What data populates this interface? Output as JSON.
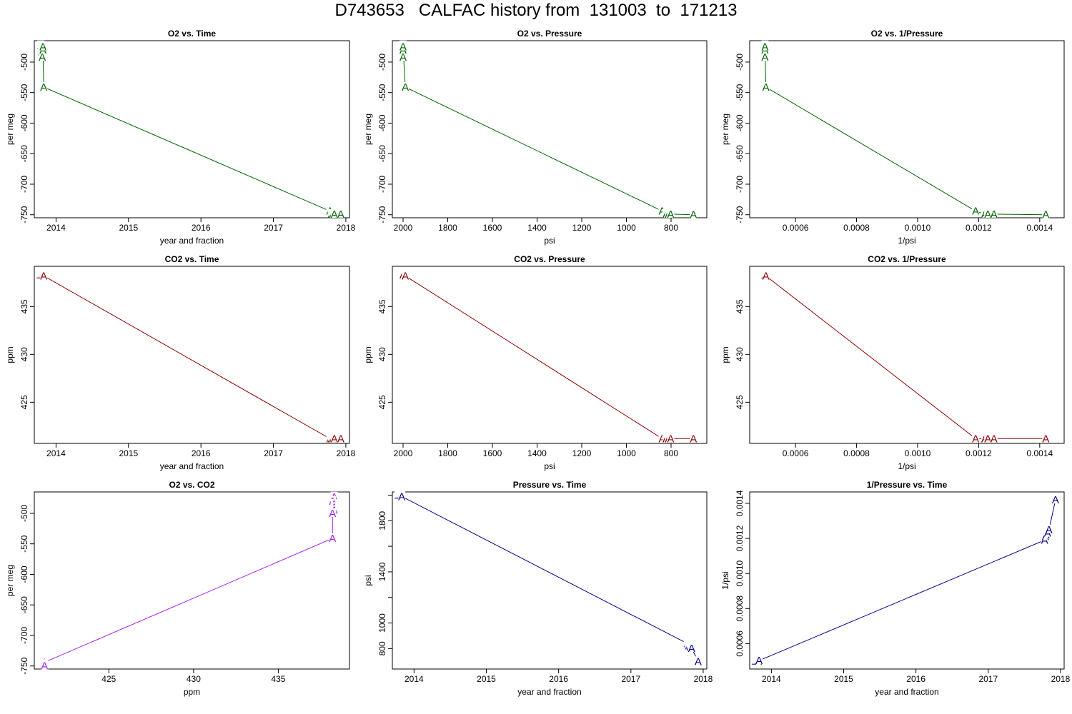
{
  "title": "D743653   CALFAC history from  131003  to  171213",
  "colors": {
    "o2": "#006400",
    "co2": "#8b0000",
    "o2_co2": "#a020f0",
    "pressure": "#00008b"
  },
  "chart_data": [
    {
      "type": "line",
      "title": "O2 vs. Time",
      "xlabel": "year and fraction",
      "ylabel": "per meg",
      "color_key": "o2",
      "marker": "A",
      "xlim": [
        2013.7,
        2018.05
      ],
      "ylim": [
        -755,
        -465
      ],
      "xticks": [
        2014,
        2015,
        2016,
        2017,
        2018
      ],
      "yticks": [
        -500,
        -550,
        -600,
        -650,
        -700,
        -750
      ],
      "x": [
        2013.79,
        2013.8,
        2013.8,
        2013.81,
        2013.81,
        2013.82,
        2013.82,
        2013.83,
        2017.78,
        2017.8,
        2017.82,
        2017.84,
        2017.93
      ],
      "y": [
        -473,
        -478,
        -483,
        -488,
        -492,
        -480,
        -475,
        -541,
        -744,
        -749,
        -749,
        -749,
        -749
      ]
    },
    {
      "type": "line",
      "title": "O2 vs. Pressure",
      "xlabel": "psi",
      "ylabel": "per meg",
      "color_key": "o2",
      "marker": "A",
      "xlim": [
        2048,
        640
      ],
      "ylim": [
        -755,
        -465
      ],
      "xticks": [
        2000,
        1800,
        1600,
        1400,
        1200,
        1000,
        800
      ],
      "yticks": [
        -500,
        -550,
        -600,
        -650,
        -700,
        -750
      ],
      "x": [
        2000,
        2000,
        1999,
        1999,
        2000,
        2000,
        2000,
        1990,
        840,
        822,
        812,
        802,
        700
      ],
      "y": [
        -473,
        -478,
        -483,
        -488,
        -492,
        -480,
        -475,
        -541,
        -744,
        -749,
        -749,
        -749,
        -750
      ]
    },
    {
      "type": "line",
      "title": "O2 vs. 1/Pressure",
      "xlabel": "1/psi",
      "ylabel": "per meg",
      "color_key": "o2",
      "marker": "A",
      "xlim": [
        0.00045,
        0.00148
      ],
      "ylim": [
        -755,
        -465
      ],
      "xticks": [
        0.0006,
        0.0008,
        0.001,
        0.0012,
        0.0014
      ],
      "xtick_labels": [
        "0.0006",
        "0.0008",
        "0.0010",
        "0.0012",
        "0.0014"
      ],
      "yticks": [
        -500,
        -550,
        -600,
        -650,
        -700,
        -750
      ],
      "x": [
        0.0005,
        0.0005,
        0.0005,
        0.0005,
        0.0005,
        0.0005,
        0.0005,
        0.000503,
        0.00119,
        0.00122,
        0.00123,
        0.00125,
        0.00142
      ],
      "y": [
        -473,
        -478,
        -483,
        -488,
        -492,
        -480,
        -475,
        -541,
        -744,
        -749,
        -749,
        -749,
        -750
      ]
    },
    {
      "type": "line",
      "title": "CO2 vs. Time",
      "xlabel": "year and fraction",
      "ylabel": "ppm",
      "color_key": "co2",
      "marker": "A",
      "xlim": [
        2013.7,
        2018.05
      ],
      "ylim": [
        420.7,
        439.2
      ],
      "xticks": [
        2014,
        2015,
        2016,
        2017,
        2018
      ],
      "yticks": [
        425,
        430,
        435
      ],
      "x": [
        2013.78,
        2013.79,
        2013.8,
        2013.81,
        2013.82,
        2013.83,
        2017.78,
        2017.8,
        2017.82,
        2017.84,
        2017.93
      ],
      "y": [
        438.3,
        438.3,
        438.3,
        438.3,
        438.3,
        438.2,
        421.2,
        421.2,
        421.2,
        421.2,
        421.2
      ]
    },
    {
      "type": "line",
      "title": "CO2 vs. Pressure",
      "xlabel": "psi",
      "ylabel": "ppm",
      "color_key": "co2",
      "marker": "A",
      "xlim": [
        2048,
        640
      ],
      "ylim": [
        420.7,
        439.2
      ],
      "xticks": [
        2000,
        1800,
        1600,
        1400,
        1200,
        1000,
        800
      ],
      "yticks": [
        425,
        430,
        435
      ],
      "x": [
        2000,
        2000,
        1999,
        1999,
        2000,
        1990,
        840,
        822,
        812,
        802,
        700
      ],
      "y": [
        438.3,
        438.3,
        438.3,
        438.3,
        438.3,
        438.2,
        421.2,
        421.2,
        421.2,
        421.2,
        421.2
      ]
    },
    {
      "type": "line",
      "title": "CO2 vs. 1/Pressure",
      "xlabel": "1/psi",
      "ylabel": "ppm",
      "color_key": "co2",
      "marker": "A",
      "xlim": [
        0.00045,
        0.00148
      ],
      "ylim": [
        420.7,
        439.2
      ],
      "xticks": [
        0.0006,
        0.0008,
        0.001,
        0.0012,
        0.0014
      ],
      "xtick_labels": [
        "0.0006",
        "0.0008",
        "0.0010",
        "0.0012",
        "0.0014"
      ],
      "yticks": [
        425,
        430,
        435
      ],
      "x": [
        0.0005,
        0.0005,
        0.0005,
        0.0005,
        0.000503,
        0.00119,
        0.00122,
        0.00123,
        0.00125,
        0.00142
      ],
      "y": [
        438.3,
        438.3,
        438.3,
        438.3,
        438.2,
        421.2,
        421.2,
        421.2,
        421.2,
        421.2
      ]
    },
    {
      "type": "line",
      "title": "O2 vs. CO2",
      "xlabel": "ppm",
      "ylabel": "per meg",
      "color_key": "o2_co2",
      "marker": "A",
      "xlim": [
        420.6,
        439.2
      ],
      "ylim": [
        -755,
        -465
      ],
      "xticks": [
        425,
        430,
        435
      ],
      "yticks": [
        -500,
        -550,
        -600,
        -650,
        -700,
        -750
      ],
      "x": [
        438.3,
        438.2,
        438.3,
        438.3,
        438.3,
        438.2,
        438.2,
        421.2,
        421.2,
        421.2,
        421.2
      ],
      "y": [
        -473,
        -480,
        -485,
        -490,
        -495,
        -500,
        -541,
        -744,
        -747,
        -749,
        -750
      ]
    },
    {
      "type": "line",
      "title": "Pressure vs. Time",
      "xlabel": "year and fraction",
      "ylabel": "psi",
      "color_key": "pressure",
      "marker": "A",
      "xlim": [
        2013.7,
        2018.05
      ],
      "ylim": [
        640,
        2025
      ],
      "xticks": [
        2014,
        2015,
        2016,
        2017,
        2018
      ],
      "yticks": [
        800,
        1000,
        1400,
        1800
      ],
      "minor_yticks": [
        1200,
        1600,
        2000
      ],
      "x": [
        2013.78,
        2013.79,
        2013.8,
        2013.81,
        2013.82,
        2013.83,
        2017.78,
        2017.79,
        2017.8,
        2017.82,
        2017.84,
        2017.93
      ],
      "y": [
        2000,
        2000,
        2000,
        1999,
        1999,
        1990,
        840,
        830,
        822,
        812,
        802,
        700
      ]
    },
    {
      "type": "line",
      "title": "1/Pressure vs. Time",
      "xlabel": "year and fraction",
      "ylabel": "1/psi",
      "color_key": "pressure",
      "marker": "A",
      "xlim": [
        2013.7,
        2018.05
      ],
      "ylim": [
        0.000455,
        0.001465
      ],
      "xticks": [
        2014,
        2015,
        2016,
        2017,
        2018
      ],
      "yticks": [
        0.0006,
        0.0008,
        0.001,
        0.0012,
        0.0014
      ],
      "ytick_labels": [
        "0.0006",
        "0.0008",
        "0.0010",
        "0.0012",
        "0.0014"
      ],
      "x": [
        2013.78,
        2013.79,
        2013.8,
        2013.81,
        2013.82,
        2013.83,
        2017.78,
        2017.79,
        2017.8,
        2017.82,
        2017.84,
        2017.93
      ],
      "y": [
        0.0005,
        0.0005,
        0.0005,
        0.0005,
        0.0005,
        0.000503,
        0.00119,
        0.00121,
        0.00122,
        0.00123,
        0.00125,
        0.00142
      ]
    }
  ]
}
